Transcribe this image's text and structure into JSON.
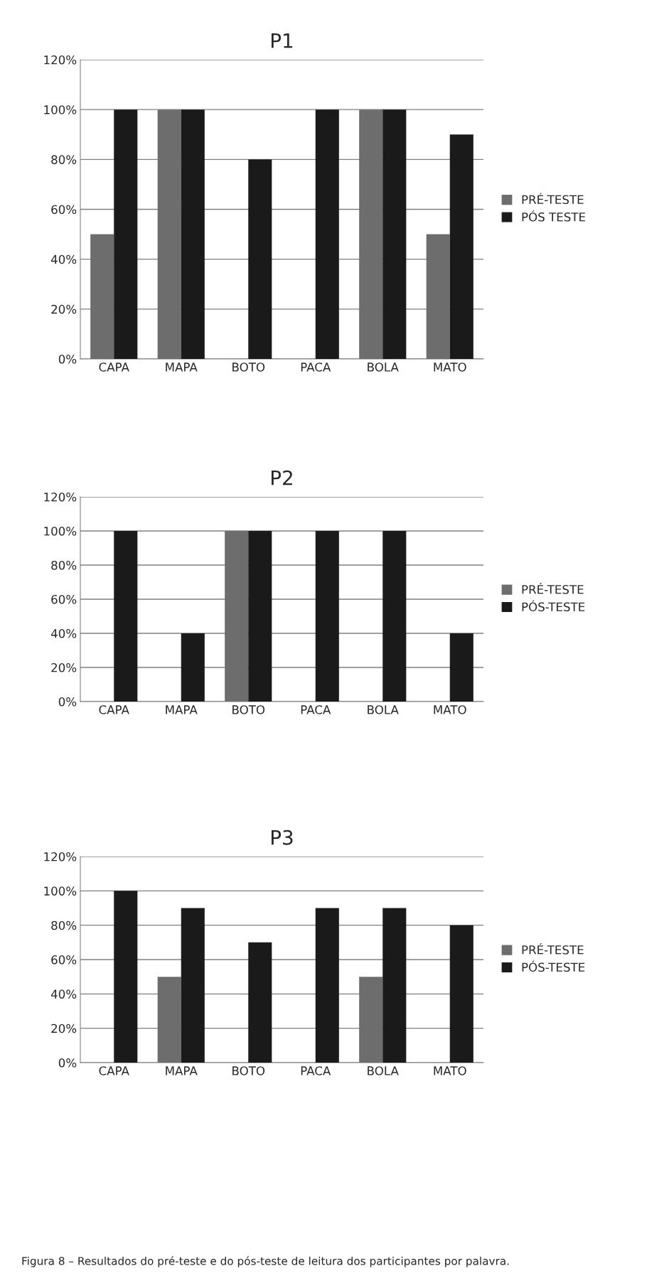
{
  "chart_data": [
    {
      "type": "bar",
      "title": "P1",
      "categories": [
        "CAPA",
        "MAPA",
        "BOTO",
        "PACA",
        "BOLA",
        "MATO"
      ],
      "series": [
        {
          "name": "PRÉ-TESTE",
          "color": "#6d6d6d",
          "values": [
            50,
            100,
            0,
            0,
            100,
            50
          ]
        },
        {
          "name": "PÓS TESTE",
          "color": "#1a1a1a",
          "values": [
            100,
            100,
            80,
            100,
            100,
            90
          ]
        }
      ],
      "ylim": [
        0,
        120
      ],
      "yticks": [
        {
          "value": 0,
          "label": "0%"
        },
        {
          "value": 20,
          "label": "20%"
        },
        {
          "value": 40,
          "label": "40%"
        },
        {
          "value": 60,
          "label": "60%"
        },
        {
          "value": 80,
          "label": "80%"
        },
        {
          "value": 100,
          "label": "100%"
        },
        {
          "value": 120,
          "label": "120%"
        }
      ],
      "grid": "y",
      "legend": "right"
    },
    {
      "type": "bar",
      "title": "P2",
      "categories": [
        "CAPA",
        "MAPA",
        "BOTO",
        "PACA",
        "BOLA",
        "MATO"
      ],
      "series": [
        {
          "name": "PRÉ-TESTE",
          "color": "#6d6d6d",
          "values": [
            0,
            0,
            100,
            0,
            0,
            0
          ]
        },
        {
          "name": "PÓS-TESTE",
          "color": "#1a1a1a",
          "values": [
            100,
            40,
            100,
            100,
            100,
            40
          ]
        }
      ],
      "ylim": [
        0,
        120
      ],
      "yticks": [
        {
          "value": 0,
          "label": "0%"
        },
        {
          "value": 20,
          "label": "20%"
        },
        {
          "value": 40,
          "label": "40%"
        },
        {
          "value": 60,
          "label": "60%"
        },
        {
          "value": 80,
          "label": "80%"
        },
        {
          "value": 100,
          "label": "100%"
        },
        {
          "value": 120,
          "label": "120%"
        }
      ],
      "grid": "y",
      "legend": "right"
    },
    {
      "type": "bar",
      "title": "P3",
      "categories": [
        "CAPA",
        "MAPA",
        "BOTO",
        "PACA",
        "BOLA",
        "MATO"
      ],
      "series": [
        {
          "name": "PRÉ-TESTE",
          "color": "#6d6d6d",
          "values": [
            0,
            50,
            0,
            0,
            50,
            0
          ]
        },
        {
          "name": "PÓS-TESTE",
          "color": "#1a1a1a",
          "values": [
            100,
            90,
            70,
            90,
            90,
            80
          ]
        }
      ],
      "ylim": [
        0,
        120
      ],
      "yticks": [
        {
          "value": 0,
          "label": "0%"
        },
        {
          "value": 20,
          "label": "20%"
        },
        {
          "value": 40,
          "label": "40%"
        },
        {
          "value": 60,
          "label": "60%"
        },
        {
          "value": 80,
          "label": "80%"
        },
        {
          "value": 100,
          "label": "100%"
        },
        {
          "value": 120,
          "label": "120%"
        }
      ],
      "grid": "y",
      "legend": "right",
      "annotations": [
        "Figura 8 – Resultados do pré-teste e do pós-teste de leitura dos participantes por palavra."
      ]
    }
  ]
}
